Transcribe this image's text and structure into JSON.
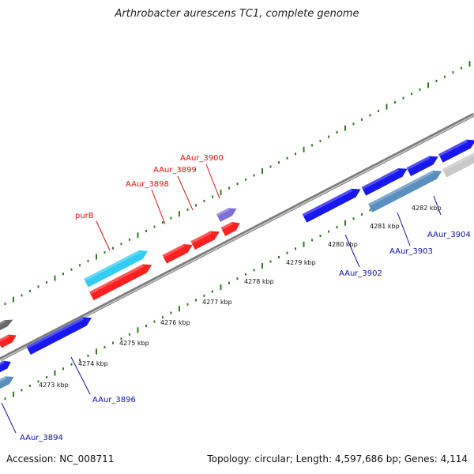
{
  "header": {
    "title": "Arthrobacter aurescens TC1, complete genome"
  },
  "footer": {
    "accession": "Accession: NC_008711",
    "summary": "Topology: circular; Length: 4,597,686 bp; Genes: 4,114"
  },
  "colors": {
    "backbone": "#8a8a8a",
    "tick": "#2f7a1f",
    "gene_red": "#ff2020",
    "gene_blue": "#1717ee",
    "gene_cyan": "#33ccf2",
    "gene_purple": "#7f6fd6",
    "gene_grey": "#6b6b6b",
    "gene_steel": "#5a8fc0",
    "gene_lightgrey": "#c8c8c8",
    "label_red": "#e01010",
    "label_blue": "#1111aa"
  },
  "kbp_labels": [
    "4273 kbp",
    "4274 kbp",
    "4275 kbp",
    "4276 kbp",
    "4277 kbp",
    "4278 kbp",
    "4279 kbp",
    "4280 kbp",
    "4281 kbp",
    "4282 kbp"
  ],
  "gene_labels": {
    "purB": "purB",
    "AAur_3898": "AAur_3898",
    "AAur_3899": "AAur_3899",
    "AAur_3900": "AAur_3900",
    "AAur_3902": "AAur_3902",
    "AAur_3903": "AAur_3903",
    "AAur_3904": "AAur_3904",
    "AAur_3896": "AAur_3896",
    "AAur_3894": "AAur_3894"
  }
}
